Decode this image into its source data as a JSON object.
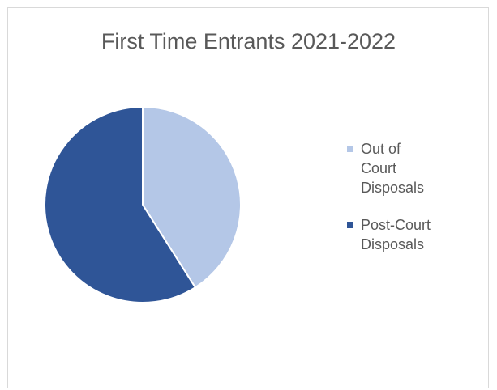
{
  "chart_data": {
    "type": "pie",
    "title": "First Time Entrants 2021-2022",
    "slices": [
      {
        "label": "Out of Court Disposals",
        "legend_lines": [
          "Out of",
          "Court",
          "Disposals"
        ],
        "value": 41,
        "color": "#b4c7e7"
      },
      {
        "label": "Post-Court Disposals",
        "legend_lines": [
          "Post-Court",
          "Disposals"
        ],
        "value": 59,
        "color": "#2f5597"
      }
    ],
    "legend_position": "right",
    "start_angle_deg": 0,
    "direction": "clockwise"
  }
}
